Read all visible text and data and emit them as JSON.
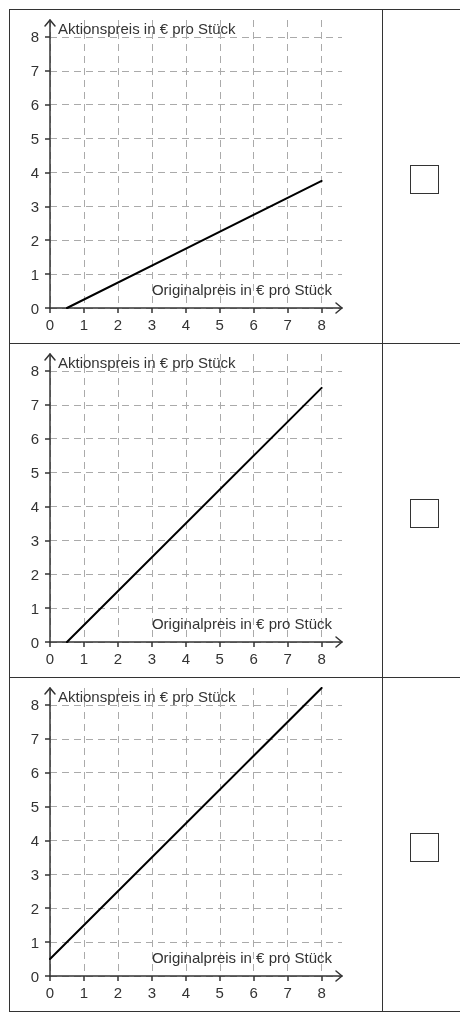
{
  "chart_data": [
    {
      "type": "line",
      "xlabel": "Originalpreis in € pro Stück",
      "ylabel": "Aktionspreis in € pro Stück",
      "x": [
        0.5,
        8
      ],
      "values": [
        0,
        3.75
      ],
      "color": "#000000",
      "xlim": [
        0,
        8.6
      ],
      "ylim": [
        0,
        8.5
      ],
      "xticks": [
        0,
        1,
        2,
        3,
        4,
        5,
        6,
        7,
        8
      ],
      "yticks": [
        0,
        1,
        2,
        3,
        4,
        5,
        6,
        7,
        8
      ],
      "grid": true
    },
    {
      "type": "line",
      "xlabel": "Originalpreis in € pro Stück",
      "ylabel": "Aktionspreis in € pro Stück",
      "x": [
        0.5,
        8
      ],
      "values": [
        0,
        7.5
      ],
      "color": "#000000",
      "xlim": [
        0,
        8.6
      ],
      "ylim": [
        0,
        8.5
      ],
      "xticks": [
        0,
        1,
        2,
        3,
        4,
        5,
        6,
        7,
        8
      ],
      "yticks": [
        0,
        1,
        2,
        3,
        4,
        5,
        6,
        7,
        8
      ],
      "grid": true
    },
    {
      "type": "line",
      "xlabel": "Originalpreis in € pro Stück",
      "ylabel": "Aktionspreis in € pro Stück",
      "x": [
        0,
        8
      ],
      "values": [
        0.5,
        8.5
      ],
      "color": "#000000",
      "xlim": [
        0,
        8.6
      ],
      "ylim": [
        0,
        8.5
      ],
      "xticks": [
        0,
        1,
        2,
        3,
        4,
        5,
        6,
        7,
        8
      ],
      "yticks": [
        0,
        1,
        2,
        3,
        4,
        5,
        6,
        7,
        8
      ],
      "grid": true
    }
  ]
}
